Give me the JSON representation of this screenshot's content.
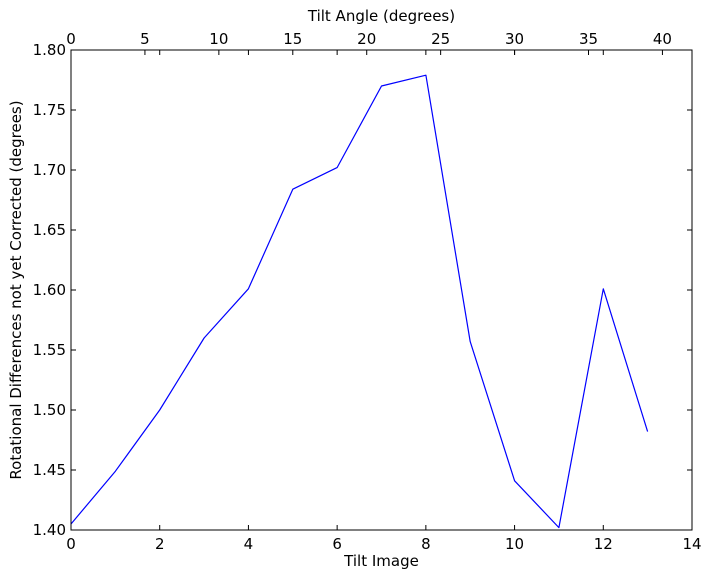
{
  "chart_data": {
    "type": "line",
    "xlabel": "Tilt Image",
    "ylabel": "Rotational Differences not yet Corrected (degrees)",
    "x2label": "Tilt Angle (degrees)",
    "xlim": [
      0,
      14
    ],
    "ylim": [
      1.4,
      1.8
    ],
    "x2lim": [
      0,
      42
    ],
    "xticks": [
      0,
      2,
      4,
      6,
      8,
      10,
      12,
      14
    ],
    "xtick_labels": [
      "0",
      "2",
      "4",
      "6",
      "8",
      "10",
      "12",
      "14"
    ],
    "yticks": [
      1.4,
      1.45,
      1.5,
      1.55,
      1.6,
      1.65,
      1.7,
      1.75,
      1.8
    ],
    "ytick_labels": [
      "1.40",
      "1.45",
      "1.50",
      "1.55",
      "1.60",
      "1.65",
      "1.70",
      "1.75",
      "1.80"
    ],
    "x2ticks": [
      0,
      5,
      10,
      15,
      20,
      25,
      30,
      35,
      40
    ],
    "x2tick_labels": [
      "0",
      "5",
      "10",
      "15",
      "20",
      "25",
      "30",
      "35",
      "40"
    ],
    "grid": false,
    "series": [
      {
        "color": "#0000ff",
        "x": [
          0,
          1,
          2,
          3,
          4,
          5,
          6,
          7,
          8,
          9,
          10,
          11,
          12,
          13
        ],
        "y": [
          1.405,
          1.449,
          1.5,
          1.56,
          1.601,
          1.684,
          1.702,
          1.77,
          1.779,
          1.557,
          1.441,
          1.402,
          1.601,
          1.482
        ]
      }
    ]
  }
}
